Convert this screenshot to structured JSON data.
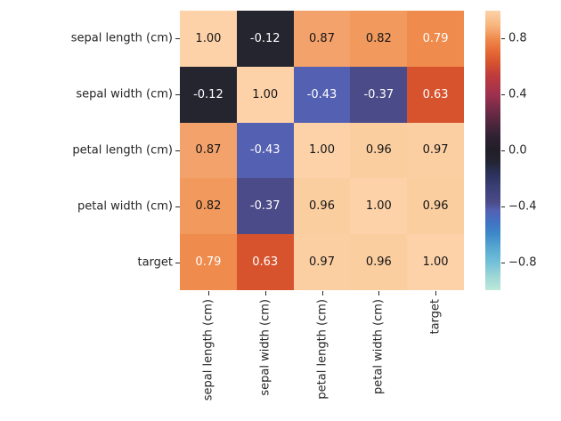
{
  "chart_data": {
    "type": "heatmap",
    "title": "",
    "colormap": "icefire",
    "vmin": -1,
    "vmax": 1,
    "x_categories": [
      "sepal length (cm)",
      "sepal width (cm)",
      "petal length (cm)",
      "petal width (cm)",
      "target"
    ],
    "y_categories": [
      "sepal length (cm)",
      "sepal width (cm)",
      "petal length (cm)",
      "petal width (cm)",
      "target"
    ],
    "matrix": [
      [
        1.0,
        -0.12,
        0.87,
        0.82,
        0.79
      ],
      [
        -0.12,
        1.0,
        -0.43,
        -0.37,
        0.63
      ],
      [
        0.87,
        -0.43,
        1.0,
        0.96,
        0.97
      ],
      [
        0.82,
        -0.37,
        0.96,
        1.0,
        0.96
      ],
      [
        0.79,
        0.63,
        0.97,
        0.96,
        1.0
      ]
    ],
    "cell_labels": [
      [
        "1.00",
        "-0.12",
        "0.87",
        "0.82",
        "0.79"
      ],
      [
        "-0.12",
        "1.00",
        "-0.43",
        "-0.37",
        "0.63"
      ],
      [
        "0.87",
        "-0.43",
        "1.00",
        "0.96",
        "0.97"
      ],
      [
        "0.82",
        "-0.37",
        "0.96",
        "1.00",
        "0.96"
      ],
      [
        "0.79",
        "0.63",
        "0.97",
        "0.96",
        "1.00"
      ]
    ],
    "cell_colors": [
      [
        "#fdd2a9",
        "#24252f",
        "#f4a26b",
        "#f29a5e",
        "#ef8b4d"
      ],
      [
        "#24252f",
        "#fdd2a9",
        "#5460b2",
        "#4a4b88",
        "#d7532e"
      ],
      [
        "#f4a26b",
        "#5460b2",
        "#fdd2a9",
        "#fbce9f",
        "#fccfa3"
      ],
      [
        "#f29a5e",
        "#4a4b88",
        "#fbce9f",
        "#fdd2a9",
        "#fbce9f"
      ],
      [
        "#ef8b4d",
        "#d7532e",
        "#fccfa3",
        "#fbce9f",
        "#fdd2a9"
      ]
    ],
    "cell_text_colors": [
      [
        "#151515",
        "#ffffff",
        "#151515",
        "#151515",
        "#ffffff"
      ],
      [
        "#ffffff",
        "#151515",
        "#ffffff",
        "#ffffff",
        "#ffffff"
      ],
      [
        "#151515",
        "#ffffff",
        "#151515",
        "#151515",
        "#151515"
      ],
      [
        "#151515",
        "#ffffff",
        "#151515",
        "#151515",
        "#151515"
      ],
      [
        "#ffffff",
        "#ffffff",
        "#151515",
        "#151515",
        "#151515"
      ]
    ],
    "axis_label_color": "#262626",
    "colorbar": {
      "ticks": [
        {
          "value": 0.8,
          "label": "0.8"
        },
        {
          "value": 0.4,
          "label": "0.4"
        },
        {
          "value": 0.0,
          "label": "0.0"
        },
        {
          "value": -0.4,
          "label": "−0.4"
        },
        {
          "value": -0.8,
          "label": "−0.8"
        }
      ],
      "gradient": [
        [
          "0%",
          "#fdd2a9"
        ],
        [
          "4%",
          "#f9bd87"
        ],
        [
          "7%",
          "#f5a76f"
        ],
        [
          "10%",
          "#ef8a4c"
        ],
        [
          "14%",
          "#e76d38"
        ],
        [
          "18.5%",
          "#d7532e"
        ],
        [
          "23%",
          "#c03c3c"
        ],
        [
          "30%",
          "#9e3150"
        ],
        [
          "36%",
          "#6e2a46"
        ],
        [
          "42%",
          "#43253a"
        ],
        [
          "46%",
          "#2b2030"
        ],
        [
          "50%",
          "#211e27"
        ],
        [
          "54%",
          "#232432"
        ],
        [
          "58%",
          "#293056"
        ],
        [
          "63%",
          "#3a3f76"
        ],
        [
          "68.5%",
          "#4a4b88"
        ],
        [
          "71.5%",
          "#5460b2"
        ],
        [
          "76%",
          "#4173c4"
        ],
        [
          "80%",
          "#3d8ac7"
        ],
        [
          "85%",
          "#57a9d2"
        ],
        [
          "90%",
          "#72c0d8"
        ],
        [
          "95%",
          "#9dd6d6"
        ],
        [
          "100%",
          "#bce8da"
        ]
      ]
    }
  }
}
